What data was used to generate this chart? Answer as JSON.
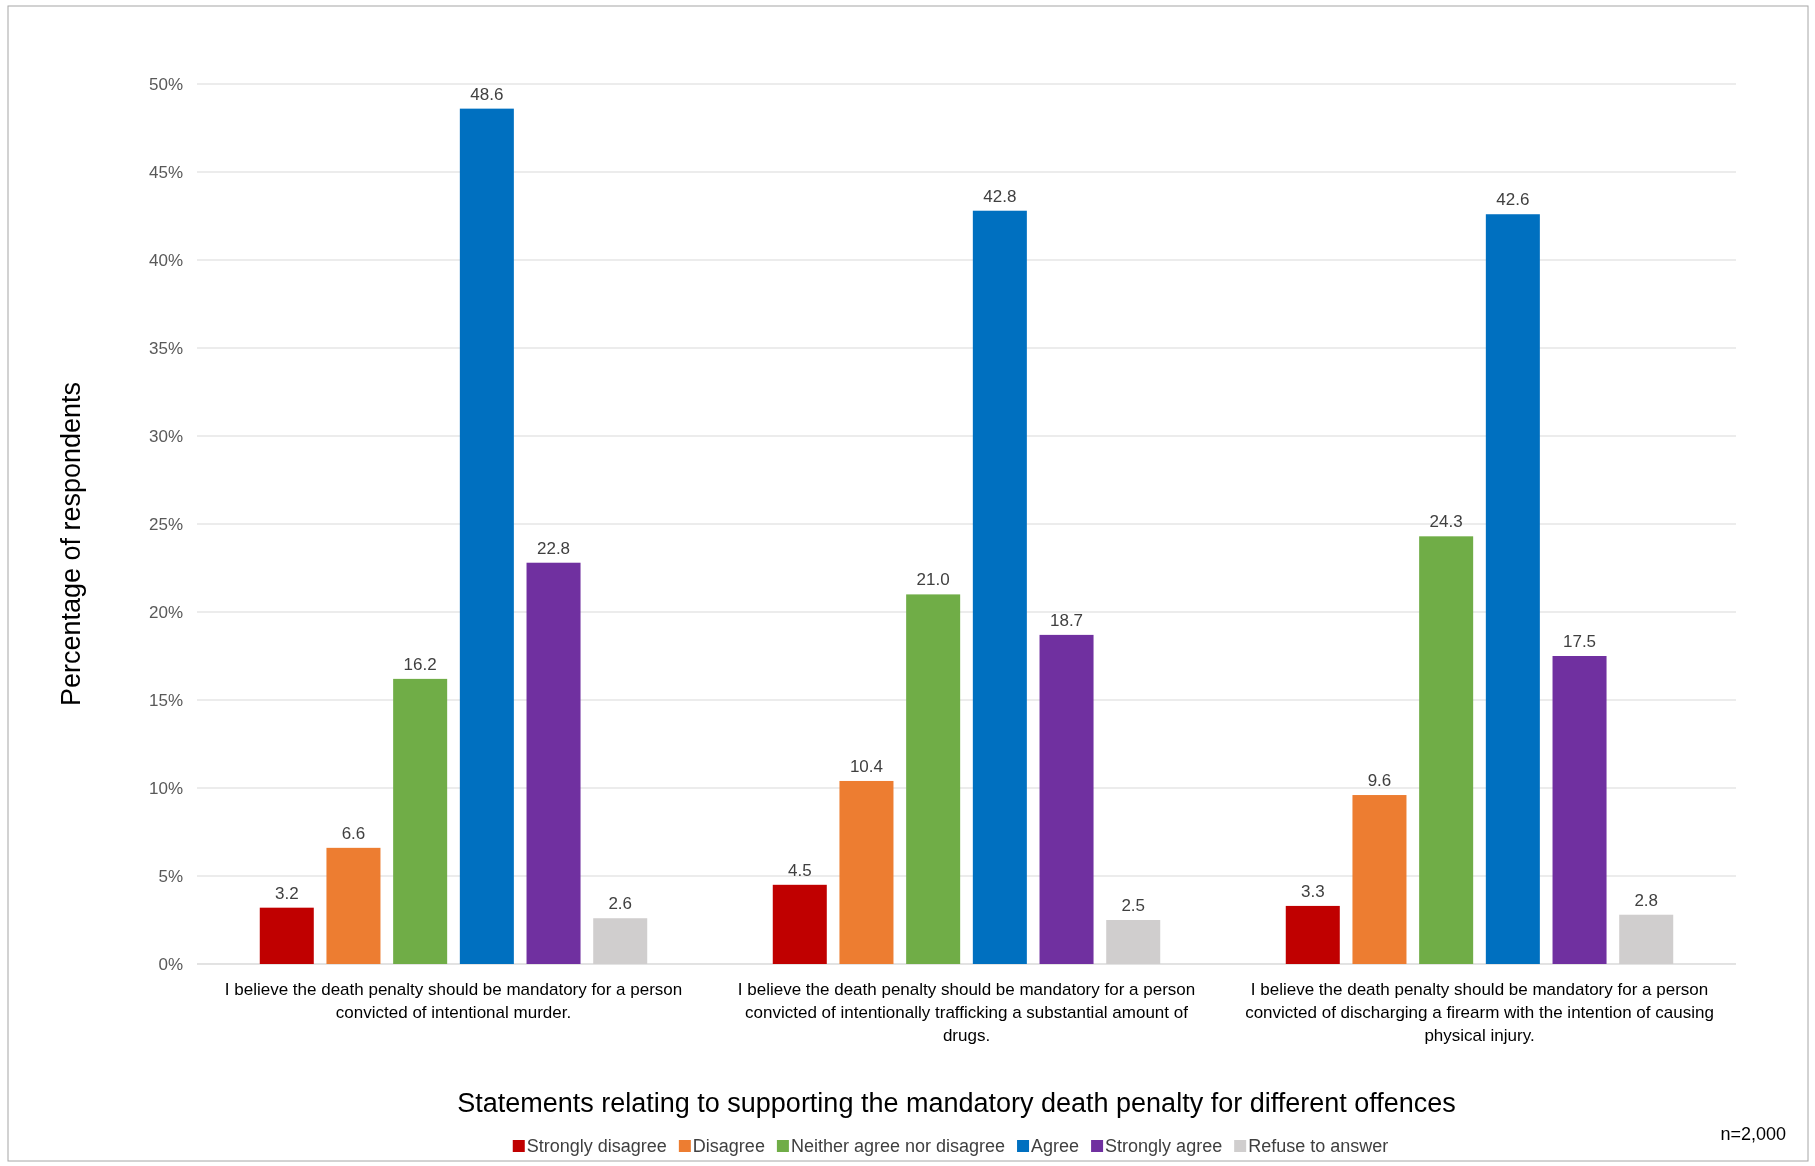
{
  "chart_data": {
    "type": "bar",
    "xlabel": "Statements relating to supporting the mandatory death penalty for different offences",
    "ylabel": "Percentage of respondents",
    "categories": [
      "I believe the death penalty should be mandatory for a person convicted of intentional murder.",
      "I believe the death penalty should be mandatory for a person convicted of intentionally trafficking a substantial amount of drugs.",
      "I believe the death penalty should be mandatory for a person convicted of discharging a firearm with the intention of causing physical injury."
    ],
    "series": [
      {
        "name": "Strongly disagree",
        "color": "#c00000",
        "values": [
          3.2,
          4.5,
          3.3
        ],
        "value_labels": [
          "3.2",
          "4.5",
          "3.3"
        ]
      },
      {
        "name": "Disagree",
        "color": "#ed7d31",
        "values": [
          6.6,
          10.4,
          9.6
        ],
        "value_labels": [
          "6.6",
          "10.4",
          "9.6"
        ]
      },
      {
        "name": "Neither agree nor disagree",
        "color": "#70ad47",
        "values": [
          16.2,
          21.0,
          24.3
        ],
        "value_labels": [
          "16.2",
          "21.0",
          "24.3"
        ]
      },
      {
        "name": "Agree",
        "color": "#0070c0",
        "values": [
          48.6,
          42.8,
          42.6
        ],
        "value_labels": [
          "48.6",
          "42.8",
          "42.6"
        ]
      },
      {
        "name": "Strongly agree",
        "color": "#7030a0",
        "values": [
          22.8,
          18.7,
          17.5
        ],
        "value_labels": [
          "22.8",
          "18.7",
          "17.5"
        ]
      },
      {
        "name": "Refuse to answer",
        "color": "#d0cece",
        "values": [
          2.6,
          2.5,
          2.8
        ],
        "value_labels": [
          "2.6",
          "2.5",
          "2.8"
        ]
      }
    ],
    "ylim": [
      0,
      50
    ],
    "yticks": [
      {
        "value": 0,
        "label": "0%"
      },
      {
        "value": 5,
        "label": "5%"
      },
      {
        "value": 10,
        "label": "10%"
      },
      {
        "value": 15,
        "label": "15%"
      },
      {
        "value": 20,
        "label": "20%"
      },
      {
        "value": 25,
        "label": "25%"
      },
      {
        "value": 30,
        "label": "30%"
      },
      {
        "value": 35,
        "label": "35%"
      },
      {
        "value": 40,
        "label": "40%"
      },
      {
        "value": 45,
        "label": "45%"
      },
      {
        "value": 50,
        "label": "50%"
      }
    ],
    "grid": "y",
    "legend": "bottom",
    "annotations": [
      "n=2,000"
    ]
  }
}
